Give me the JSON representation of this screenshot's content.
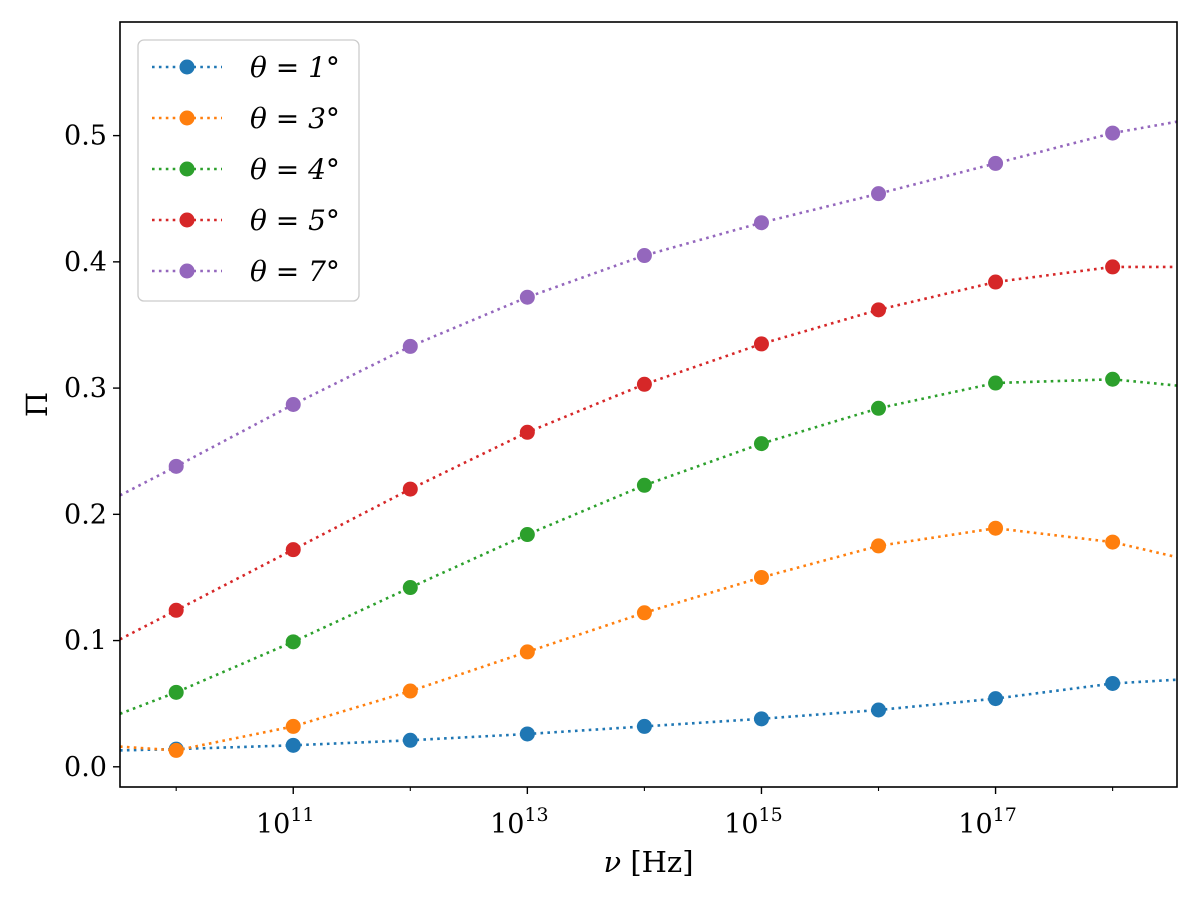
{
  "chart_data": {
    "type": "line",
    "title": "",
    "xlabel": {
      "symbol": "ν",
      "unit": "[Hz]"
    },
    "ylabel": "Π",
    "xscale": "log",
    "x_log10_range": [
      9.52,
      18.55
    ],
    "ylim": [
      -0.016,
      0.59
    ],
    "grid": false,
    "legend_position": "top-left",
    "line_style": "dotted",
    "marker": "circle",
    "x_ticks": [
      {
        "base": "10",
        "exp": "11",
        "log10": 11
      },
      {
        "base": "10",
        "exp": "13",
        "log10": 13
      },
      {
        "base": "10",
        "exp": "15",
        "log10": 15
      },
      {
        "base": "10",
        "exp": "17",
        "log10": 17
      }
    ],
    "y_ticks": [
      {
        "value": 0.0,
        "label": "0.0"
      },
      {
        "value": 0.1,
        "label": "0.1"
      },
      {
        "value": 0.2,
        "label": "0.2"
      },
      {
        "value": 0.3,
        "label": "0.3"
      },
      {
        "value": 0.4,
        "label": "0.4"
      },
      {
        "value": 0.5,
        "label": "0.5"
      }
    ],
    "series": [
      {
        "name": "θ = 1°",
        "color": "#1f77b4",
        "marker_x_log10": [
          10,
          11,
          12,
          13,
          14,
          15,
          16,
          17,
          18
        ],
        "marker_values": [
          0.014,
          0.017,
          0.021,
          0.026,
          0.032,
          0.038,
          0.045,
          0.054,
          0.066
        ],
        "curve_x_log10": [
          9.52,
          10,
          11,
          12,
          13,
          14,
          15,
          16,
          17,
          18,
          18.55
        ],
        "curve_values": [
          0.013,
          0.014,
          0.017,
          0.021,
          0.026,
          0.032,
          0.038,
          0.045,
          0.054,
          0.066,
          0.069
        ]
      },
      {
        "name": "θ = 3°",
        "color": "#ff7f0e",
        "marker_x_log10": [
          10,
          11,
          12,
          13,
          14,
          15,
          16,
          17,
          18
        ],
        "marker_values": [
          0.013,
          0.032,
          0.06,
          0.091,
          0.122,
          0.15,
          0.175,
          0.189,
          0.178
        ],
        "curve_x_log10": [
          9.52,
          10,
          11,
          12,
          13,
          14,
          15,
          16,
          17,
          18,
          18.55
        ],
        "curve_values": [
          0.016,
          0.013,
          0.032,
          0.06,
          0.091,
          0.122,
          0.15,
          0.175,
          0.189,
          0.178,
          0.166
        ]
      },
      {
        "name": "θ = 4°",
        "color": "#2ca02c",
        "marker_x_log10": [
          10,
          11,
          12,
          13,
          14,
          15,
          16,
          17,
          18
        ],
        "marker_values": [
          0.059,
          0.099,
          0.142,
          0.184,
          0.223,
          0.256,
          0.284,
          0.304,
          0.307
        ],
        "curve_x_log10": [
          9.52,
          10,
          11,
          12,
          13,
          14,
          15,
          16,
          17,
          18,
          18.55
        ],
        "curve_values": [
          0.042,
          0.059,
          0.099,
          0.142,
          0.184,
          0.223,
          0.256,
          0.284,
          0.304,
          0.307,
          0.302
        ]
      },
      {
        "name": "θ = 5°",
        "color": "#d62728",
        "marker_x_log10": [
          10,
          11,
          12,
          13,
          14,
          15,
          16,
          17,
          18
        ],
        "marker_values": [
          0.124,
          0.172,
          0.22,
          0.265,
          0.303,
          0.335,
          0.362,
          0.384,
          0.396
        ],
        "curve_x_log10": [
          9.52,
          10,
          11,
          12,
          13,
          14,
          15,
          16,
          17,
          18,
          18.55
        ],
        "curve_values": [
          0.101,
          0.124,
          0.172,
          0.22,
          0.265,
          0.303,
          0.335,
          0.362,
          0.384,
          0.396,
          0.396
        ]
      },
      {
        "name": "θ = 7°",
        "color": "#9467bd",
        "marker_x_log10": [
          10,
          11,
          12,
          13,
          14,
          15,
          16,
          17,
          18
        ],
        "marker_values": [
          0.238,
          0.287,
          0.333,
          0.372,
          0.405,
          0.431,
          0.454,
          0.478,
          0.502
        ],
        "curve_x_log10": [
          9.52,
          10,
          11,
          12,
          13,
          14,
          15,
          16,
          17,
          18,
          18.55
        ],
        "curve_values": [
          0.215,
          0.238,
          0.287,
          0.333,
          0.372,
          0.405,
          0.431,
          0.454,
          0.478,
          0.502,
          0.511
        ]
      }
    ]
  }
}
